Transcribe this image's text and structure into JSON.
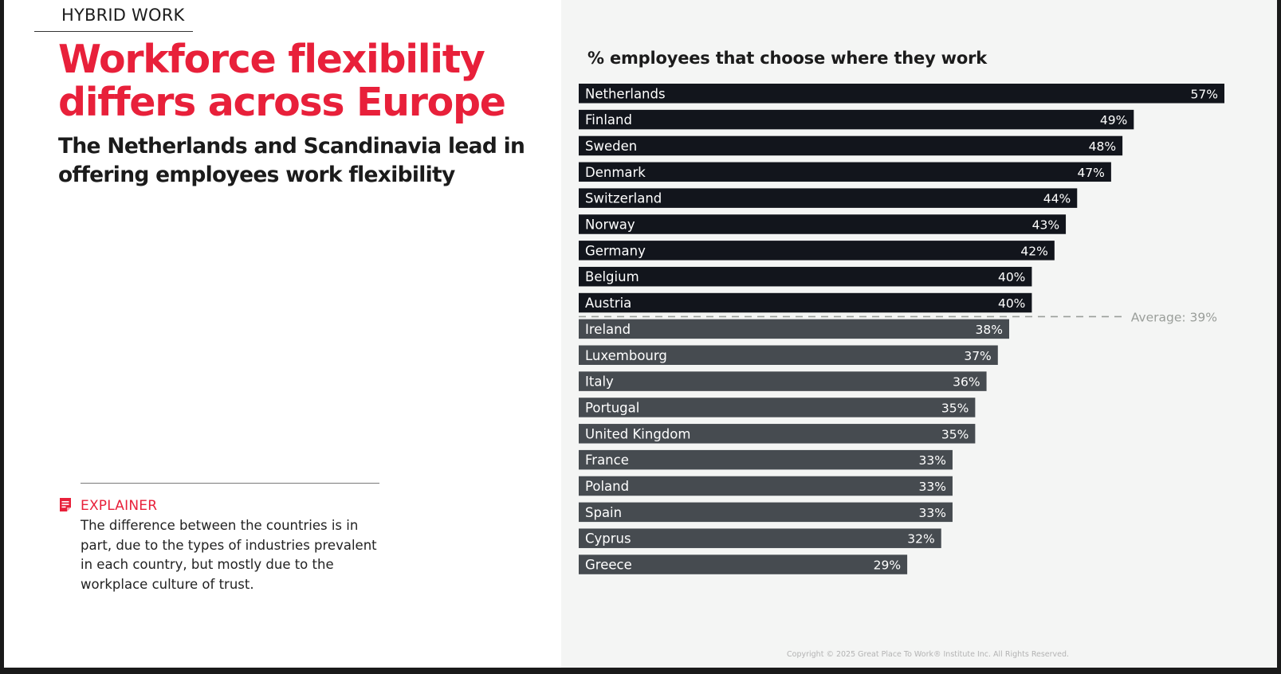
{
  "header": {
    "section_tag": "HYBRID WORK",
    "headline": "Workforce flexibility differs across Europe",
    "subhead": "The Netherlands and Scandinavia lead in offering employees work flexibility"
  },
  "explainer": {
    "label": "EXPLAINER",
    "body": "The difference between the countries is in part, due to the types of industries prevalent in each country, but mostly due to the workplace culture of trust."
  },
  "footer": {
    "copyright": "Copyright © 2025 Great Place To Work® Institute Inc. All Rights Reserved."
  },
  "colors": {
    "accent": "#e8203a",
    "above_average_bar": "#12151c",
    "below_average_bar": "#464b50",
    "average_line": "#9a9e9a"
  },
  "icons": {
    "explainer": "note-icon"
  },
  "chart_data": {
    "type": "bar",
    "orientation": "horizontal",
    "title": "% employees that choose where they work",
    "categories": [
      "Netherlands",
      "Finland",
      "Sweden",
      "Denmark",
      "Switzerland",
      "Norway",
      "Germany",
      "Belgium",
      "Austria",
      "Ireland",
      "Luxembourg",
      "Italy",
      "Portugal",
      "United Kingdom",
      "France",
      "Poland",
      "Spain",
      "Cyprus",
      "Greece"
    ],
    "values": [
      57,
      49,
      48,
      47,
      44,
      43,
      42,
      40,
      40,
      38,
      37,
      36,
      35,
      35,
      33,
      33,
      33,
      32,
      29
    ],
    "value_labels": [
      "57%",
      "49%",
      "48%",
      "47%",
      "44%",
      "43%",
      "42%",
      "40%",
      "40%",
      "38%",
      "37%",
      "36%",
      "35%",
      "35%",
      "33%",
      "33%",
      "33%",
      "32%",
      "29%"
    ],
    "unit": "%",
    "average": 39,
    "average_label": "Average: 39%",
    "xlim": [
      0,
      57
    ],
    "grid": false,
    "legend": "none"
  }
}
